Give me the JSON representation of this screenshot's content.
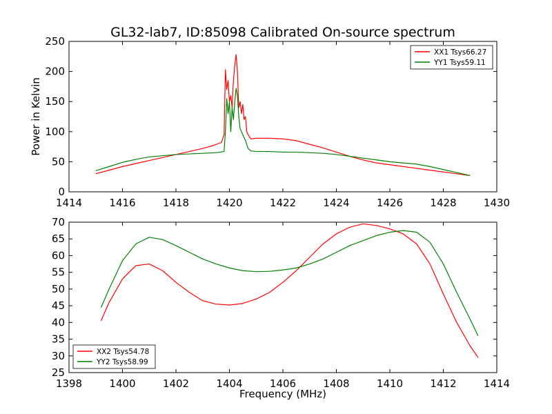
{
  "figure": {
    "title": "GL32-lab7, ID:85098 Calibrated On-source spectrum",
    "xlabel": "Frequency (MHz)",
    "ylabel": "Power in Kelvin"
  },
  "chart_data": [
    {
      "type": "line",
      "title": "GL32-lab7, ID:85098 Calibrated On-source spectrum",
      "xlabel": "",
      "ylabel": "Power in Kelvin",
      "xlim": [
        1414,
        1430
      ],
      "ylim": [
        0,
        250
      ],
      "xticks": [
        "1414",
        "1416",
        "1418",
        "1420",
        "1422",
        "1424",
        "1426",
        "1428",
        "1430"
      ],
      "yticks": [
        "0",
        "50",
        "100",
        "150",
        "200",
        "250"
      ],
      "grid": false,
      "legend": "top-right",
      "series": [
        {
          "name": "XX1 Tsys66.27",
          "color": "#ff0000",
          "x": [
            1415.0,
            1415.5,
            1416.0,
            1416.5,
            1417.0,
            1417.5,
            1418.0,
            1418.5,
            1419.0,
            1419.4,
            1419.7,
            1419.8,
            1419.85,
            1419.9,
            1419.95,
            1420.0,
            1420.05,
            1420.1,
            1420.15,
            1420.2,
            1420.25,
            1420.3,
            1420.35,
            1420.4,
            1420.45,
            1420.5,
            1420.55,
            1420.6,
            1420.65,
            1420.7,
            1420.8,
            1421.0,
            1421.5,
            1422.0,
            1422.5,
            1423.0,
            1423.5,
            1424.0,
            1424.5,
            1425.0,
            1425.5,
            1426.0,
            1426.5,
            1427.0,
            1427.5,
            1428.0,
            1428.5,
            1429.0
          ],
          "y": [
            30,
            36,
            42,
            47,
            52,
            57,
            62,
            67,
            72,
            77,
            82,
            95,
            203,
            170,
            185,
            150,
            160,
            140,
            185,
            210,
            228,
            200,
            140,
            150,
            130,
            145,
            120,
            125,
            100,
            95,
            88,
            89,
            89,
            88,
            85,
            79,
            73,
            66,
            59,
            53,
            48,
            45,
            42,
            39,
            36,
            33,
            30,
            27
          ]
        },
        {
          "name": "YY1 Tsys59.11",
          "color": "#008000",
          "x": [
            1415.0,
            1415.5,
            1416.0,
            1416.5,
            1417.0,
            1417.5,
            1418.0,
            1418.5,
            1419.0,
            1419.5,
            1419.8,
            1419.85,
            1419.9,
            1419.95,
            1420.0,
            1420.05,
            1420.1,
            1420.15,
            1420.2,
            1420.25,
            1420.3,
            1420.35,
            1420.4,
            1420.5,
            1420.6,
            1420.7,
            1420.8,
            1421.0,
            1421.5,
            1422.0,
            1422.5,
            1423.0,
            1423.5,
            1424.0,
            1424.5,
            1425.0,
            1425.5,
            1426.0,
            1426.5,
            1427.0,
            1427.5,
            1428.0,
            1428.5,
            1429.0
          ],
          "y": [
            35,
            42,
            49,
            54,
            58,
            60,
            62,
            63,
            64,
            65,
            67,
            100,
            155,
            130,
            150,
            100,
            140,
            120,
            150,
            172,
            160,
            125,
            105,
            95,
            85,
            72,
            68,
            67,
            67,
            66,
            66,
            65,
            64,
            62,
            59,
            56,
            53,
            50,
            48,
            46,
            42,
            37,
            32,
            27
          ]
        }
      ]
    },
    {
      "type": "line",
      "title": "",
      "xlabel": "Frequency (MHz)",
      "ylabel": "",
      "xlim": [
        1398,
        1414
      ],
      "ylim": [
        25,
        70
      ],
      "xticks": [
        "1398",
        "1400",
        "1402",
        "1404",
        "1406",
        "1408",
        "1410",
        "1412",
        "1414"
      ],
      "yticks": [
        "25",
        "30",
        "35",
        "40",
        "45",
        "50",
        "55",
        "60",
        "65",
        "70"
      ],
      "grid": false,
      "legend": "bottom-left",
      "series": [
        {
          "name": "XX2 Tsys54.78",
          "color": "#ff0000",
          "x": [
            1399.2,
            1399.5,
            1400.0,
            1400.5,
            1401.0,
            1401.5,
            1402.0,
            1402.5,
            1403.0,
            1403.5,
            1404.0,
            1404.5,
            1405.0,
            1405.5,
            1406.0,
            1406.5,
            1407.0,
            1407.5,
            1408.0,
            1408.5,
            1409.0,
            1409.5,
            1410.0,
            1410.5,
            1411.0,
            1411.5,
            1412.0,
            1412.5,
            1413.0,
            1413.3
          ],
          "y": [
            40.5,
            46,
            53,
            57,
            57.5,
            55.5,
            52,
            49,
            46.5,
            45.5,
            45.2,
            45.7,
            47,
            49,
            52,
            55.5,
            59.5,
            63.5,
            66.5,
            68.5,
            69.5,
            69,
            68,
            66.5,
            63.5,
            57.5,
            48.5,
            40,
            33,
            29.5
          ]
        },
        {
          "name": "YY2 Tsys58.99",
          "color": "#008000",
          "x": [
            1399.2,
            1399.5,
            1400.0,
            1400.5,
            1401.0,
            1401.5,
            1402.0,
            1402.5,
            1403.0,
            1403.5,
            1404.0,
            1404.5,
            1405.0,
            1405.5,
            1406.0,
            1406.5,
            1407.0,
            1407.5,
            1408.0,
            1408.5,
            1409.0,
            1409.5,
            1410.0,
            1410.5,
            1411.0,
            1411.5,
            1412.0,
            1412.5,
            1413.0,
            1413.3
          ],
          "y": [
            44.5,
            50,
            58.5,
            63.5,
            65.5,
            64.8,
            63,
            61,
            59,
            57.5,
            56.3,
            55.5,
            55.2,
            55.3,
            55.7,
            56.3,
            57.5,
            59,
            61,
            63,
            64.5,
            66,
            67,
            67.5,
            67,
            64,
            57.5,
            49,
            41,
            36
          ]
        }
      ]
    }
  ]
}
